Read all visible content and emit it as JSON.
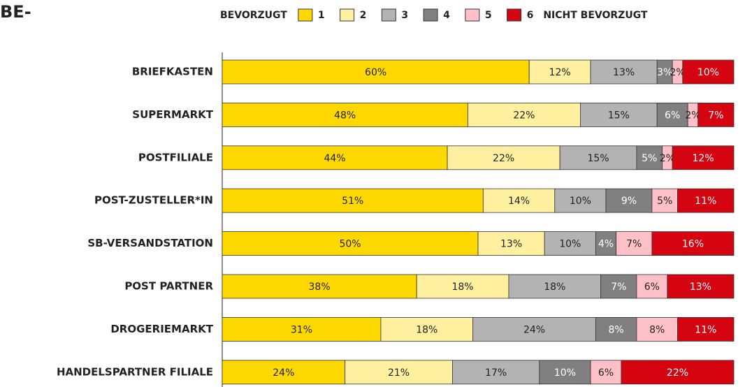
{
  "chart_data": {
    "type": "stacked-bar-horizontal",
    "title": "BE-",
    "legend_start_label": "BEVORZUGT",
    "legend_end_label": "NICHT BEVORZUGT",
    "categories": [
      "BRIEFKASTEN",
      "SUPERMARKT",
      "POSTFILIALE",
      "POST-ZUSTELLER*IN",
      "SB-VERSANDSTATION",
      "POST PARTNER",
      "DROGERIEMARKT",
      "HANDELSPARTNER FILIALE"
    ],
    "xlim": [
      0,
      100
    ],
    "series": [
      {
        "name": "1",
        "color": "#ffd800",
        "values": [
          60,
          48,
          44,
          51,
          50,
          38,
          31,
          24
        ],
        "value_labels": [
          "60%",
          "48%",
          "44%",
          "51%",
          "50%",
          "38%",
          "31%",
          "24%"
        ]
      },
      {
        "name": "2",
        "color": "#fff0a0",
        "values": [
          12,
          22,
          22,
          14,
          13,
          18,
          18,
          21
        ],
        "value_labels": [
          "12%",
          "22%",
          "22%",
          "14%",
          "13%",
          "18%",
          "18%",
          "21%"
        ]
      },
      {
        "name": "3",
        "color": "#b3b3b3",
        "values": [
          13,
          15,
          15,
          10,
          10,
          18,
          24,
          17
        ],
        "value_labels": [
          "13%",
          "15%",
          "15%",
          "10%",
          "10%",
          "18%",
          "24%",
          "17%"
        ]
      },
      {
        "name": "4",
        "color": "#808080",
        "values": [
          3,
          6,
          5,
          9,
          4,
          7,
          8,
          10
        ],
        "value_labels": [
          "3%",
          "6%",
          "5%",
          "9%",
          "4%",
          "7%",
          "8%",
          "10%"
        ]
      },
      {
        "name": "5",
        "color": "#ffc0c8",
        "values": [
          2,
          2,
          2,
          5,
          7,
          6,
          8,
          6
        ],
        "value_labels": [
          "2%",
          "2%",
          "2%",
          "5%",
          "7%",
          "6%",
          "8%",
          "6%"
        ]
      },
      {
        "name": "6",
        "color": "#d40511",
        "values": [
          10,
          7,
          12,
          11,
          16,
          13,
          11,
          22
        ],
        "value_labels": [
          "10%",
          "7%",
          "12%",
          "11%",
          "16%",
          "13%",
          "11%",
          "22%"
        ]
      }
    ]
  }
}
